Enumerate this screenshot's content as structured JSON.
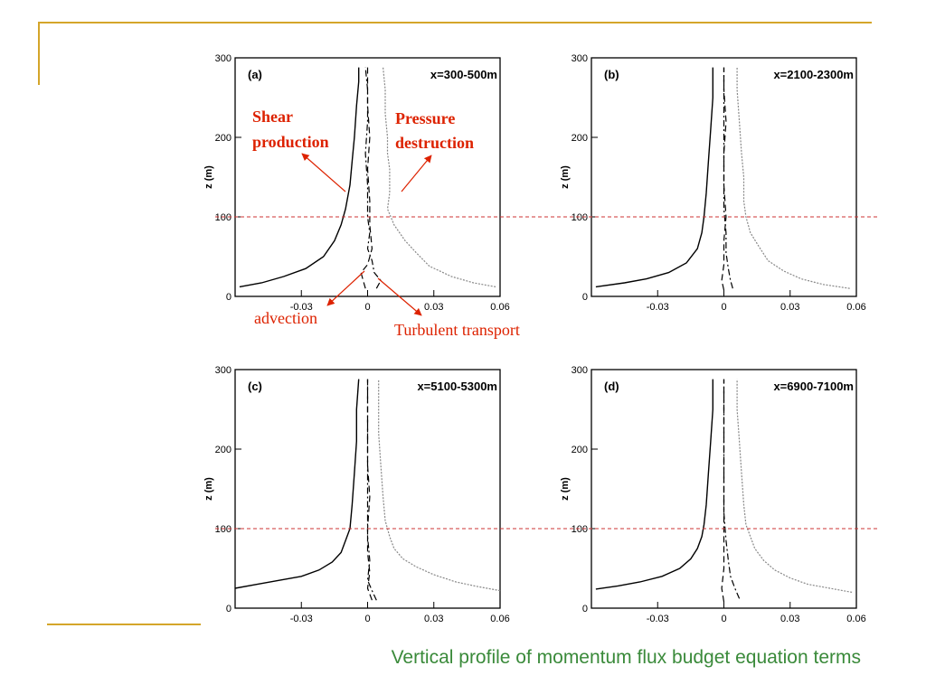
{
  "colors": {
    "accent": "#d4a52a",
    "caption": "#3a8a3a",
    "annotation": "#dd2200",
    "reference_line": "#cc3333",
    "shear_curve": "#000000",
    "pressure_curve": "#888888"
  },
  "caption": "Vertical profile of momentum flux budget equation terms",
  "reference_height": 100,
  "chart_data": [
    {
      "type": "line",
      "panel": "(a)",
      "label": "x=300-500m",
      "ylabel": "z (m)",
      "xlim": [
        -0.06,
        0.06
      ],
      "ylim": [
        0,
        300
      ],
      "xticks": [
        "-0.03",
        "0",
        "0.03",
        "0.06"
      ],
      "yticks": [
        "0",
        "100",
        "200",
        "300"
      ],
      "annotations": {
        "shear_line1": "Shear",
        "shear_line2": "production",
        "pressure_line1": "Pressure",
        "pressure_line2": "destruction",
        "advection": "advection",
        "turbulent": "Turbulent transport"
      },
      "series": [
        {
          "style": "solid",
          "values": [
            [
              -0.058,
              12
            ],
            [
              -0.048,
              17
            ],
            [
              -0.038,
              25
            ],
            [
              -0.028,
              35
            ],
            [
              -0.02,
              50
            ],
            [
              -0.015,
              70
            ],
            [
              -0.012,
              90
            ],
            [
              -0.01,
              110
            ],
            [
              -0.008,
              140
            ],
            [
              -0.007,
              170
            ],
            [
              -0.006,
              200
            ],
            [
              -0.005,
              240
            ],
            [
              -0.004,
              270
            ],
            [
              -0.004,
              288
            ]
          ]
        },
        {
          "style": "dotted-gray",
          "values": [
            [
              0.058,
              12
            ],
            [
              0.048,
              17
            ],
            [
              0.038,
              25
            ],
            [
              0.028,
              38
            ],
            [
              0.022,
              55
            ],
            [
              0.017,
              70
            ],
            [
              0.012,
              90
            ],
            [
              0.009,
              110
            ],
            [
              0.01,
              130
            ],
            [
              0.01,
              145
            ],
            [
              0.01,
              160
            ],
            [
              0.009,
              180
            ],
            [
              0.009,
              200
            ],
            [
              0.008,
              230
            ],
            [
              0.008,
              260
            ],
            [
              0.007,
              288
            ]
          ]
        },
        {
          "style": "dashed",
          "values": [
            [
              -0.001,
              10
            ],
            [
              -0.002,
              20
            ],
            [
              -0.003,
              30
            ],
            [
              0,
              40
            ],
            [
              0.002,
              60
            ],
            [
              0.001,
              90
            ],
            [
              0.001,
              120
            ],
            [
              0,
              160
            ],
            [
              0.001,
              200
            ],
            [
              0,
              240
            ],
            [
              0,
              288
            ]
          ]
        },
        {
          "style": "dashdot",
          "values": [
            [
              0.004,
              10
            ],
            [
              0.006,
              20
            ],
            [
              0.003,
              30
            ],
            [
              0.002,
              45
            ],
            [
              0,
              60
            ],
            [
              0.001,
              80
            ],
            [
              0,
              100
            ],
            [
              0,
              140
            ],
            [
              -0.001,
              180
            ],
            [
              0,
              220
            ],
            [
              0,
              260
            ],
            [
              -0.001,
              288
            ]
          ]
        }
      ]
    },
    {
      "type": "line",
      "panel": "(b)",
      "label": "x=2100-2300m",
      "ylabel": "z (m)",
      "xlim": [
        -0.06,
        0.06
      ],
      "ylim": [
        0,
        300
      ],
      "xticks": [
        "-0.03",
        "0",
        "0.03",
        "0.06"
      ],
      "yticks": [
        "0",
        "100",
        "200",
        "300"
      ],
      "series": [
        {
          "style": "solid",
          "values": [
            [
              -0.058,
              12
            ],
            [
              -0.045,
              17
            ],
            [
              -0.035,
              22
            ],
            [
              -0.025,
              30
            ],
            [
              -0.017,
              42
            ],
            [
              -0.012,
              60
            ],
            [
              -0.01,
              80
            ],
            [
              -0.009,
              100
            ],
            [
              -0.008,
              130
            ],
            [
              -0.007,
              170
            ],
            [
              -0.006,
              210
            ],
            [
              -0.005,
              250
            ],
            [
              -0.005,
              288
            ]
          ]
        },
        {
          "style": "dotted-gray",
          "values": [
            [
              0.057,
              10
            ],
            [
              0.045,
              15
            ],
            [
              0.035,
              22
            ],
            [
              0.027,
              32
            ],
            [
              0.02,
              45
            ],
            [
              0.016,
              62
            ],
            [
              0.012,
              80
            ],
            [
              0.01,
              100
            ],
            [
              0.009,
              120
            ],
            [
              0.009,
              150
            ],
            [
              0.008,
              180
            ],
            [
              0.007,
              220
            ],
            [
              0.006,
              260
            ],
            [
              0.006,
              288
            ]
          ]
        },
        {
          "style": "dashed",
          "values": [
            [
              0,
              8
            ],
            [
              -0.001,
              20
            ],
            [
              0,
              40
            ],
            [
              0,
              70
            ],
            [
              0.001,
              100
            ],
            [
              0,
              140
            ],
            [
              0,
              180
            ],
            [
              0.001,
              220
            ],
            [
              0,
              260
            ],
            [
              0,
              288
            ]
          ]
        },
        {
          "style": "dashdot",
          "values": [
            [
              0.004,
              10
            ],
            [
              0.003,
              20
            ],
            [
              0.002,
              35
            ],
            [
              0.001,
              55
            ],
            [
              0.001,
              80
            ],
            [
              0,
              110
            ],
            [
              0,
              150
            ],
            [
              0,
              190
            ],
            [
              0,
              230
            ],
            [
              0,
              288
            ]
          ]
        }
      ]
    },
    {
      "type": "line",
      "panel": "(c)",
      "label": "x=5100-5300m",
      "ylabel": "z (m)",
      "xlim": [
        -0.06,
        0.06
      ],
      "ylim": [
        0,
        300
      ],
      "xticks": [
        "-0.03",
        "0",
        "0.03",
        "0.06"
      ],
      "yticks": [
        "0",
        "100",
        "200",
        "300"
      ],
      "series": [
        {
          "style": "solid",
          "values": [
            [
              -0.06,
              25
            ],
            [
              -0.05,
              30
            ],
            [
              -0.04,
              35
            ],
            [
              -0.03,
              40
            ],
            [
              -0.022,
              48
            ],
            [
              -0.016,
              58
            ],
            [
              -0.012,
              70
            ],
            [
              -0.01,
              85
            ],
            [
              -0.008,
              100
            ],
            [
              -0.007,
              130
            ],
            [
              -0.006,
              170
            ],
            [
              -0.005,
              210
            ],
            [
              -0.005,
              250
            ],
            [
              -0.004,
              288
            ]
          ]
        },
        {
          "style": "dotted-gray",
          "values": [
            [
              0.06,
              22
            ],
            [
              0.05,
              27
            ],
            [
              0.04,
              33
            ],
            [
              0.03,
              42
            ],
            [
              0.022,
              52
            ],
            [
              0.016,
              62
            ],
            [
              0.012,
              75
            ],
            [
              0.01,
              90
            ],
            [
              0.008,
              110
            ],
            [
              0.007,
              140
            ],
            [
              0.006,
              180
            ],
            [
              0.005,
              220
            ],
            [
              0.005,
              260
            ],
            [
              0.005,
              288
            ]
          ]
        },
        {
          "style": "dashed",
          "values": [
            [
              0.002,
              10
            ],
            [
              0,
              25
            ],
            [
              0.001,
              45
            ],
            [
              0,
              70
            ],
            [
              0,
              100
            ],
            [
              0.001,
              140
            ],
            [
              0,
              180
            ],
            [
              0,
              220
            ],
            [
              0,
              260
            ],
            [
              0,
              288
            ]
          ]
        },
        {
          "style": "dashdot",
          "values": [
            [
              0.004,
              10
            ],
            [
              0.002,
              22
            ],
            [
              0,
              35
            ],
            [
              0.001,
              60
            ],
            [
              0,
              90
            ],
            [
              0,
              130
            ],
            [
              0,
              170
            ],
            [
              0,
              210
            ],
            [
              0,
              250
            ],
            [
              0,
              288
            ]
          ]
        }
      ]
    },
    {
      "type": "line",
      "panel": "(d)",
      "label": "x=6900-7100m",
      "ylabel": "z (m)",
      "xlim": [
        -0.06,
        0.06
      ],
      "ylim": [
        0,
        300
      ],
      "xticks": [
        "-0.03",
        "0",
        "0.03",
        "0.06"
      ],
      "yticks": [
        "0",
        "100",
        "200",
        "300"
      ],
      "series": [
        {
          "style": "solid",
          "values": [
            [
              -0.058,
              24
            ],
            [
              -0.048,
              28
            ],
            [
              -0.038,
              33
            ],
            [
              -0.028,
              40
            ],
            [
              -0.02,
              50
            ],
            [
              -0.015,
              62
            ],
            [
              -0.012,
              75
            ],
            [
              -0.01,
              90
            ],
            [
              -0.009,
              105
            ],
            [
              -0.008,
              130
            ],
            [
              -0.007,
              170
            ],
            [
              -0.006,
              210
            ],
            [
              -0.005,
              250
            ],
            [
              -0.005,
              288
            ]
          ]
        },
        {
          "style": "dotted-gray",
          "values": [
            [
              0.058,
              20
            ],
            [
              0.048,
              25
            ],
            [
              0.038,
              30
            ],
            [
              0.03,
              38
            ],
            [
              0.023,
              48
            ],
            [
              0.018,
              60
            ],
            [
              0.014,
              75
            ],
            [
              0.012,
              90
            ],
            [
              0.01,
              105
            ],
            [
              0.009,
              130
            ],
            [
              0.008,
              170
            ],
            [
              0.007,
              210
            ],
            [
              0.006,
              250
            ],
            [
              0.006,
              288
            ]
          ]
        },
        {
          "style": "dashed",
          "values": [
            [
              0,
              8
            ],
            [
              -0.001,
              25
            ],
            [
              0,
              50
            ],
            [
              0,
              80
            ],
            [
              0,
              110
            ],
            [
              0,
              150
            ],
            [
              0,
              190
            ],
            [
              0,
              230
            ],
            [
              0,
              288
            ]
          ]
        },
        {
          "style": "dashdot",
          "values": [
            [
              0.007,
              12
            ],
            [
              0.005,
              25
            ],
            [
              0.003,
              40
            ],
            [
              0.002,
              60
            ],
            [
              0.001,
              85
            ],
            [
              0,
              120
            ],
            [
              0,
              160
            ],
            [
              0,
              200
            ],
            [
              0,
              240
            ],
            [
              0,
              288
            ]
          ]
        }
      ]
    }
  ]
}
